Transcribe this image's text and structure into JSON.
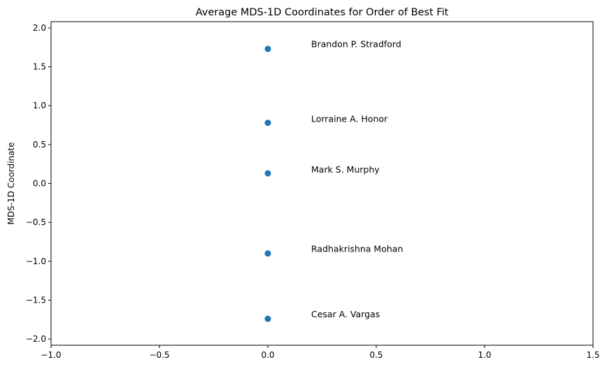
{
  "chart_data": {
    "type": "scatter",
    "title": "Average MDS-1D Coordinates for Order of Best Fit",
    "xlabel": "",
    "ylabel": "MDS-1D Coordinate",
    "xlim": [
      -1.0,
      1.5
    ],
    "ylim": [
      -2.08,
      2.08
    ],
    "x_ticks": [
      -1.0,
      -0.5,
      0.0,
      0.5,
      1.0,
      1.5
    ],
    "x_tick_labels": [
      "−1.0",
      "−0.5",
      "0.0",
      "0.5",
      "1.0",
      "1.5"
    ],
    "y_ticks": [
      2.0,
      1.5,
      1.0,
      0.5,
      0.0,
      -0.5,
      -1.0,
      -1.5,
      -2.0
    ],
    "y_tick_labels": [
      "2.0",
      "1.5",
      "1.0",
      "0.5",
      "0.0",
      "−0.5",
      "−1.0",
      "−1.5",
      "−2.0"
    ],
    "grid": false,
    "marker_color": "#1f77b4",
    "points": [
      {
        "name": "Brandon P. Stradford",
        "x": 0.0,
        "y": 1.73,
        "label_x": 0.2,
        "label_y": 1.75
      },
      {
        "name": "Lorraine A. Honor",
        "x": 0.0,
        "y": 0.78,
        "label_x": 0.2,
        "label_y": 0.79
      },
      {
        "name": "Mark S. Murphy",
        "x": 0.0,
        "y": 0.13,
        "label_x": 0.2,
        "label_y": 0.14
      },
      {
        "name": "Radhakrishna Mohan",
        "x": 0.0,
        "y": -0.9,
        "label_x": 0.2,
        "label_y": -0.88
      },
      {
        "name": "Cesar A. Vargas",
        "x": 0.0,
        "y": -1.74,
        "label_x": 0.2,
        "label_y": -1.72
      }
    ]
  }
}
